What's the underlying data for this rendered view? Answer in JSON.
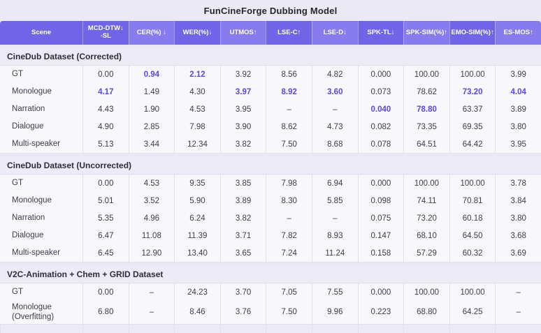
{
  "title": "FunCineForge Dubbing Model",
  "columns": [
    {
      "id": "scene",
      "label": "Scene"
    },
    {
      "id": "mcd-dtw-sl",
      "label": "MCD-DTW↓\n-SL"
    },
    {
      "id": "cer",
      "label": "CER(%) ↓"
    },
    {
      "id": "wer",
      "label": "WER(%)↓"
    },
    {
      "id": "utmos",
      "label": "UTMOS↑"
    },
    {
      "id": "lse-c",
      "label": "LSE-C↑"
    },
    {
      "id": "lse-d",
      "label": "LSE-D↓"
    },
    {
      "id": "spk-tl",
      "label": "SPK-TL↓"
    },
    {
      "id": "spk-sim",
      "label": "SPK-SIM(%)↑"
    },
    {
      "id": "emo-sim",
      "label": "EMO-SIM(%)↑"
    },
    {
      "id": "es-mos",
      "label": "ES-MOS↑"
    }
  ],
  "sections": [
    {
      "title": "CineDub Dataset (Corrected)",
      "rows": [
        {
          "scene": "GT",
          "values": [
            "0.00",
            "0.94",
            "2.12",
            "3.92",
            "8.56",
            "4.82",
            "0.000",
            "100.00",
            "100.00",
            "3.99"
          ],
          "highlight": [
            1,
            2
          ]
        },
        {
          "scene": "Monologue",
          "values": [
            "4.17",
            "1.49",
            "4.30",
            "3.97",
            "8.92",
            "3.60",
            "0.073",
            "78.62",
            "73.20",
            "4.04"
          ],
          "highlight": [
            0,
            3,
            4,
            5,
            8,
            9
          ]
        },
        {
          "scene": "Narration",
          "values": [
            "4.43",
            "1.90",
            "4.53",
            "3.95",
            "–",
            "–",
            "0.040",
            "78.80",
            "63.37",
            "3.89"
          ],
          "highlight": [
            6,
            7
          ]
        },
        {
          "scene": "Dialogue",
          "values": [
            "4.90",
            "2.85",
            "7.98",
            "3.90",
            "8.62",
            "4.73",
            "0.082",
            "73.35",
            "69.35",
            "3.80"
          ],
          "highlight": []
        },
        {
          "scene": "Multi-speaker",
          "values": [
            "5.13",
            "3.44",
            "12.34",
            "3.82",
            "7.50",
            "8.68",
            "0.078",
            "64.51",
            "64.42",
            "3.95"
          ],
          "highlight": []
        }
      ]
    },
    {
      "title": "CineDub Dataset (Uncorrected)",
      "rows": [
        {
          "scene": "GT",
          "values": [
            "0.00",
            "4.53",
            "9.35",
            "3.85",
            "7.98",
            "6.94",
            "0.000",
            "100.00",
            "100.00",
            "3.78"
          ],
          "highlight": []
        },
        {
          "scene": "Monologue",
          "values": [
            "5.01",
            "3.52",
            "5.90",
            "3.89",
            "8.30",
            "5.85",
            "0.098",
            "74.11",
            "70.81",
            "3.84"
          ],
          "highlight": []
        },
        {
          "scene": "Narration",
          "values": [
            "5.35",
            "4.96",
            "6.24",
            "3.82",
            "–",
            "–",
            "0.075",
            "73.20",
            "60.18",
            "3.80"
          ],
          "highlight": []
        },
        {
          "scene": "Dialogue",
          "values": [
            "6.47",
            "11.08",
            "11.39",
            "3.71",
            "7.82",
            "8.93",
            "0.147",
            "68.10",
            "64.50",
            "3.68"
          ],
          "highlight": []
        },
        {
          "scene": "Multi-speaker",
          "values": [
            "6.45",
            "12.90",
            "13.40",
            "3.65",
            "7.24",
            "11.24",
            "0.158",
            "57.29",
            "60.32",
            "3.69"
          ],
          "highlight": []
        }
      ]
    },
    {
      "title": "V2C-Animation + Chem + GRID Dataset",
      "rows": [
        {
          "scene": "GT",
          "values": [
            "0.00",
            "–",
            "24.23",
            "3.70",
            "7.05",
            "7.55",
            "0.000",
            "100.00",
            "100.00",
            "–"
          ],
          "highlight": []
        },
        {
          "scene": "Monologue (Overfitting)",
          "values": [
            "6.80",
            "–",
            "8.46",
            "3.76",
            "7.50",
            "9.96",
            "0.223",
            "68.80",
            "64.25",
            "–"
          ],
          "highlight": []
        }
      ]
    }
  ],
  "colors": {
    "header_purple": "#7164e6",
    "header_purple_alt": "#887bee",
    "accent_highlight": "#5a48e2",
    "page_bg": "#eae9f4",
    "band_bg": "#edecf6",
    "data_bg": "#f7f7fc"
  }
}
